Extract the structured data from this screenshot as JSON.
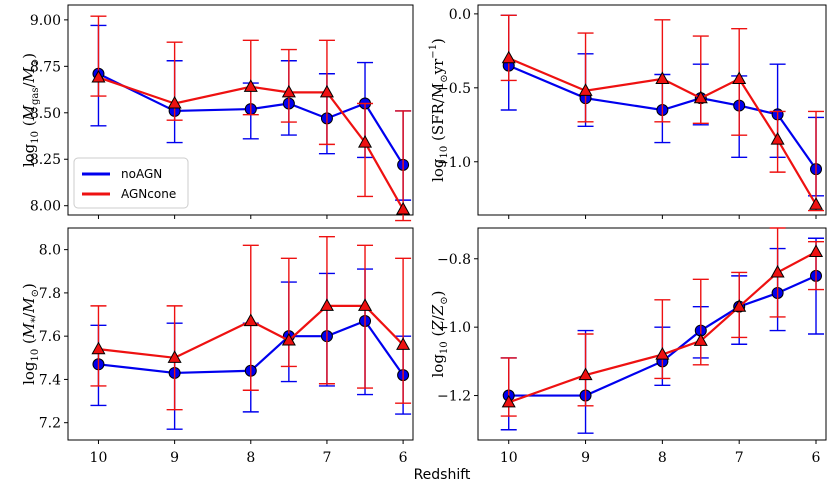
{
  "chart_data": {
    "type": "line",
    "layout": "2x2 panels, shared x axis",
    "xlabel": "Redshift",
    "x": [
      10,
      9,
      8,
      7.5,
      7,
      6.5,
      6
    ],
    "x_ticks": [
      "10",
      "9",
      "8",
      "7",
      "6"
    ],
    "x_inverted": true,
    "legend": {
      "panel": "top-left",
      "placement": "lower-left",
      "entries": [
        {
          "label": "noAGN",
          "color": "#0000ee"
        },
        {
          "label": "AGNcone",
          "color": "#ee1111"
        }
      ]
    },
    "panels": [
      {
        "position": "top-left",
        "ylabel": "log10(Mgas/M⊙)",
        "ylim": [
          7.95,
          9.08
        ],
        "yticks": [
          "8.00",
          "8.25",
          "8.50",
          "8.75",
          "9.00"
        ],
        "series": [
          {
            "name": "noAGN",
            "color": "#0000ee",
            "marker": "circle",
            "values": [
              8.71,
              8.51,
              8.52,
              8.55,
              8.47,
              8.55,
              8.22
            ],
            "err_low": [
              8.43,
              8.34,
              8.36,
              8.38,
              8.28,
              8.26,
              8.03
            ],
            "err_high": [
              8.97,
              8.78,
              8.66,
              8.78,
              8.71,
              8.77,
              8.51
            ]
          },
          {
            "name": "AGNcone",
            "color": "#ee1111",
            "marker": "triangle",
            "values": [
              8.69,
              8.55,
              8.64,
              8.61,
              8.61,
              8.34,
              7.98
            ],
            "err_low": [
              8.59,
              8.46,
              8.49,
              8.45,
              8.33,
              8.05,
              7.92
            ],
            "err_high": [
              9.02,
              8.88,
              8.89,
              8.84,
              8.89,
              8.55,
              8.51
            ]
          }
        ]
      },
      {
        "position": "top-right",
        "ylabel": "log10(SFR/M⊙yr−1)",
        "ylim": [
          -1.36,
          0.06
        ],
        "yticks": [
          "−1.0",
          "−0.5",
          "0.0"
        ],
        "series": [
          {
            "name": "noAGN",
            "color": "#0000ee",
            "marker": "circle",
            "values": [
              -0.35,
              -0.57,
              -0.65,
              -0.57,
              -0.62,
              -0.68,
              -1.05
            ],
            "err_low": [
              -0.65,
              -0.76,
              -0.87,
              -0.75,
              -0.97,
              -0.97,
              -1.23
            ],
            "err_high": [
              -0.01,
              -0.27,
              -0.41,
              -0.34,
              -0.42,
              -0.34,
              -0.7
            ]
          },
          {
            "name": "AGNcone",
            "color": "#ee1111",
            "marker": "triangle",
            "values": [
              -0.3,
              -0.52,
              -0.44,
              -0.57,
              -0.44,
              -0.85,
              -1.29
            ],
            "err_low": [
              -0.45,
              -0.73,
              -0.73,
              -0.74,
              -0.82,
              -1.07,
              -1.33
            ],
            "err_high": [
              -0.01,
              -0.13,
              -0.04,
              -0.15,
              -0.1,
              -0.66,
              -0.66
            ]
          }
        ]
      },
      {
        "position": "bottom-left",
        "ylabel": "log10(M*/M⊙)",
        "ylim": [
          7.12,
          8.1
        ],
        "yticks": [
          "7.2",
          "7.4",
          "7.6",
          "7.8",
          "8.0"
        ],
        "series": [
          {
            "name": "noAGN",
            "color": "#0000ee",
            "marker": "circle",
            "values": [
              7.47,
              7.43,
              7.44,
              7.6,
              7.6,
              7.67,
              7.42
            ],
            "err_low": [
              7.28,
              7.17,
              7.25,
              7.39,
              7.37,
              7.33,
              7.24
            ],
            "err_high": [
              7.65,
              7.66,
              7.66,
              7.85,
              7.89,
              7.91,
              7.6
            ]
          },
          {
            "name": "AGNcone",
            "color": "#ee1111",
            "marker": "triangle",
            "values": [
              7.54,
              7.5,
              7.67,
              7.58,
              7.74,
              7.74,
              7.56
            ],
            "err_low": [
              7.37,
              7.26,
              7.35,
              7.46,
              7.38,
              7.36,
              7.29
            ],
            "err_high": [
              7.74,
              7.74,
              8.02,
              7.96,
              8.06,
              8.02,
              7.96
            ]
          }
        ]
      },
      {
        "position": "bottom-right",
        "ylabel": "log10(Z/Z⊙)",
        "ylim": [
          -1.33,
          -0.71
        ],
        "yticks": [
          "−1.2",
          "−1.0",
          "−0.8"
        ],
        "series": [
          {
            "name": "noAGN",
            "color": "#0000ee",
            "marker": "circle",
            "values": [
              -1.2,
              -1.2,
              -1.1,
              -1.01,
              -0.94,
              -0.9,
              -0.85
            ],
            "err_low": [
              -1.3,
              -1.31,
              -1.17,
              -1.09,
              -1.05,
              -1.01,
              -1.02
            ],
            "err_high": [
              -1.09,
              -1.01,
              -1.0,
              -0.94,
              -0.85,
              -0.77,
              -0.74
            ]
          },
          {
            "name": "AGNcone",
            "color": "#ee1111",
            "marker": "triangle",
            "values": [
              -1.22,
              -1.14,
              -1.08,
              -1.04,
              -0.94,
              -0.84,
              -0.78
            ],
            "err_low": [
              -1.26,
              -1.23,
              -1.15,
              -1.11,
              -1.03,
              -0.97,
              -0.89
            ],
            "err_high": [
              -1.09,
              -1.02,
              -0.92,
              -0.86,
              -0.84,
              -0.71,
              -0.75
            ]
          }
        ]
      }
    ]
  }
}
